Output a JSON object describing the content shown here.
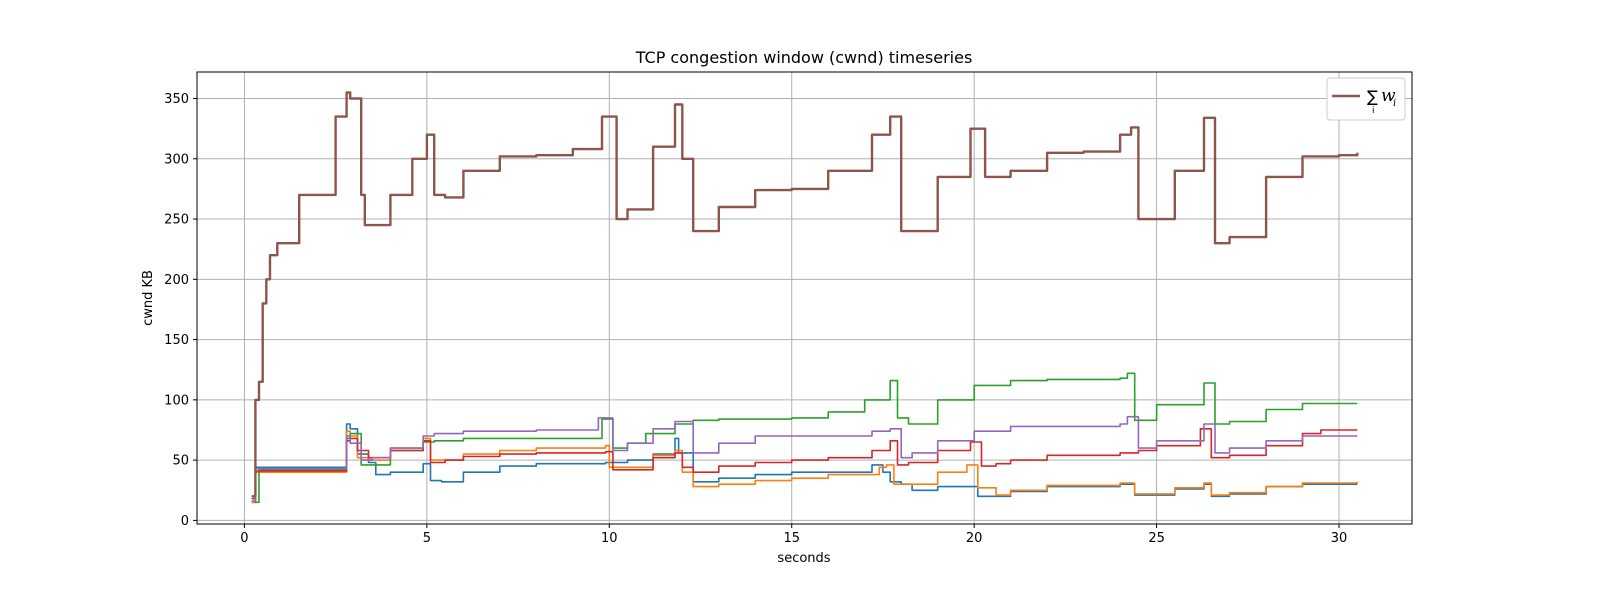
{
  "chart_data": {
    "type": "line",
    "title": "TCP congestion window (cwnd) timeseries",
    "xlabel": "seconds",
    "ylabel": "cwnd KB",
    "xlim": [
      -1.3,
      32
    ],
    "ylim": [
      -3,
      372
    ],
    "xticks": [
      0,
      5,
      10,
      15,
      20,
      25,
      30
    ],
    "yticks": [
      0,
      50,
      100,
      150,
      200,
      250,
      300,
      350
    ],
    "grid": true,
    "legend": {
      "placement": "top-right",
      "entries": [
        "sum"
      ]
    },
    "legend_text": {
      "main": "∑",
      "sub": "i",
      "var": "w",
      "var_sub": "i"
    },
    "series": [
      {
        "color": "#1f77b4",
        "points": [
          [
            0.2,
            15
          ],
          [
            0.3,
            44
          ],
          [
            2.8,
            80
          ],
          [
            2.9,
            76
          ],
          [
            3.1,
            55
          ],
          [
            3.4,
            48
          ],
          [
            3.6,
            38
          ],
          [
            4,
            40
          ],
          [
            4.9,
            47
          ],
          [
            5.1,
            33
          ],
          [
            5.4,
            32
          ],
          [
            6,
            40
          ],
          [
            7,
            45
          ],
          [
            8,
            47
          ],
          [
            9.9,
            48
          ],
          [
            10.5,
            50
          ],
          [
            11.2,
            55
          ],
          [
            11.8,
            68
          ],
          [
            11.9,
            56
          ],
          [
            12.3,
            32
          ],
          [
            13,
            35
          ],
          [
            14,
            38
          ],
          [
            15,
            40
          ],
          [
            17.2,
            46
          ],
          [
            17.5,
            40
          ],
          [
            17.7,
            32
          ],
          [
            18,
            30
          ],
          [
            18.3,
            25
          ],
          [
            19,
            28
          ],
          [
            20,
            28
          ],
          [
            20.1,
            20
          ],
          [
            20.6,
            20
          ],
          [
            21,
            24
          ],
          [
            22,
            28
          ],
          [
            24,
            30
          ],
          [
            24.4,
            21
          ],
          [
            24.8,
            21
          ],
          [
            25.5,
            26
          ],
          [
            26.3,
            30
          ],
          [
            26.5,
            20
          ],
          [
            27,
            22
          ],
          [
            28,
            28
          ],
          [
            29,
            30
          ],
          [
            30.5,
            30
          ]
        ]
      },
      {
        "color": "#ff7f0e",
        "points": [
          [
            0.2,
            15
          ],
          [
            0.3,
            40
          ],
          [
            2.8,
            74
          ],
          [
            2.9,
            70
          ],
          [
            3.1,
            52
          ],
          [
            3.4,
            50
          ],
          [
            4,
            60
          ],
          [
            4.9,
            68
          ],
          [
            5.1,
            50
          ],
          [
            6,
            55
          ],
          [
            7,
            58
          ],
          [
            8,
            60
          ],
          [
            9.9,
            62
          ],
          [
            10,
            44
          ],
          [
            10.5,
            44
          ],
          [
            11.2,
            54
          ],
          [
            11.8,
            58
          ],
          [
            12,
            40
          ],
          [
            12.3,
            28
          ],
          [
            13,
            30
          ],
          [
            14,
            33
          ],
          [
            15,
            35
          ],
          [
            16,
            38
          ],
          [
            17.4,
            44
          ],
          [
            17.6,
            46
          ],
          [
            17.8,
            30
          ],
          [
            18.2,
            30
          ],
          [
            19,
            40
          ],
          [
            19.8,
            46
          ],
          [
            20.1,
            27
          ],
          [
            20.6,
            21
          ],
          [
            21,
            25
          ],
          [
            22,
            29
          ],
          [
            24,
            31
          ],
          [
            24.4,
            22
          ],
          [
            24.8,
            22
          ],
          [
            25.5,
            27
          ],
          [
            26.3,
            31
          ],
          [
            26.5,
            21
          ],
          [
            27,
            23
          ],
          [
            28,
            28
          ],
          [
            29,
            31
          ],
          [
            30.5,
            32
          ]
        ]
      },
      {
        "color": "#2ca02c",
        "points": [
          [
            0.2,
            20
          ],
          [
            0.3,
            15
          ],
          [
            0.4,
            42
          ],
          [
            2.8,
            68
          ],
          [
            2.9,
            72
          ],
          [
            3.2,
            46
          ],
          [
            3.4,
            46
          ],
          [
            4,
            58
          ],
          [
            4.9,
            65
          ],
          [
            5.2,
            66
          ],
          [
            6,
            68
          ],
          [
            7,
            68
          ],
          [
            8,
            68
          ],
          [
            9.8,
            84
          ],
          [
            10.1,
            60
          ],
          [
            10.5,
            64
          ],
          [
            11,
            72
          ],
          [
            11.8,
            80
          ],
          [
            12.3,
            83
          ],
          [
            13,
            84
          ],
          [
            14,
            84
          ],
          [
            15,
            85
          ],
          [
            16,
            90
          ],
          [
            17,
            100
          ],
          [
            17.7,
            116
          ],
          [
            17.9,
            85
          ],
          [
            18.2,
            80
          ],
          [
            19,
            100
          ],
          [
            20,
            112
          ],
          [
            21,
            116
          ],
          [
            22,
            117
          ],
          [
            24,
            118
          ],
          [
            24.2,
            122
          ],
          [
            24.4,
            83
          ],
          [
            25,
            96
          ],
          [
            26.3,
            114
          ],
          [
            26.6,
            80
          ],
          [
            27,
            82
          ],
          [
            28,
            92
          ],
          [
            29,
            97
          ],
          [
            30.5,
            97
          ]
        ]
      },
      {
        "color": "#d62728",
        "points": [
          [
            0.2,
            18
          ],
          [
            0.3,
            41
          ],
          [
            2.8,
            66
          ],
          [
            2.9,
            68
          ],
          [
            3.1,
            58
          ],
          [
            3.4,
            52
          ],
          [
            4,
            58
          ],
          [
            4.9,
            66
          ],
          [
            5.1,
            48
          ],
          [
            5.5,
            50
          ],
          [
            6,
            53
          ],
          [
            7,
            55
          ],
          [
            8,
            56
          ],
          [
            9.9,
            57
          ],
          [
            10.1,
            42
          ],
          [
            10.4,
            42
          ],
          [
            11.2,
            52
          ],
          [
            11.8,
            56
          ],
          [
            12,
            44
          ],
          [
            12.3,
            40
          ],
          [
            13,
            45
          ],
          [
            14,
            48
          ],
          [
            15,
            50
          ],
          [
            16,
            52
          ],
          [
            17.2,
            58
          ],
          [
            17.7,
            66
          ],
          [
            17.9,
            46
          ],
          [
            18.2,
            48
          ],
          [
            19,
            58
          ],
          [
            19.9,
            65
          ],
          [
            20.2,
            45
          ],
          [
            20.6,
            47
          ],
          [
            21,
            50
          ],
          [
            22,
            54
          ],
          [
            24,
            56
          ],
          [
            24.5,
            58
          ],
          [
            25,
            62
          ],
          [
            26.2,
            76
          ],
          [
            26.5,
            52
          ],
          [
            27,
            54
          ],
          [
            28,
            62
          ],
          [
            29,
            72
          ],
          [
            29.5,
            75
          ],
          [
            30.5,
            75
          ]
        ]
      },
      {
        "color": "#9467bd",
        "points": [
          [
            0.2,
            16
          ],
          [
            0.3,
            43
          ],
          [
            2.8,
            70
          ],
          [
            2.9,
            64
          ],
          [
            3.2,
            50
          ],
          [
            3.5,
            52
          ],
          [
            4,
            60
          ],
          [
            4.9,
            70
          ],
          [
            5.2,
            72
          ],
          [
            6,
            74
          ],
          [
            7,
            74
          ],
          [
            8,
            75
          ],
          [
            9.7,
            85
          ],
          [
            10.1,
            58
          ],
          [
            10.5,
            64
          ],
          [
            11.2,
            76
          ],
          [
            11.8,
            82
          ],
          [
            12.3,
            56
          ],
          [
            13,
            64
          ],
          [
            14,
            70
          ],
          [
            15,
            70
          ],
          [
            16,
            70
          ],
          [
            17.2,
            74
          ],
          [
            17.7,
            76
          ],
          [
            18,
            52
          ],
          [
            18.3,
            56
          ],
          [
            19,
            66
          ],
          [
            20,
            74
          ],
          [
            21,
            78
          ],
          [
            22,
            78
          ],
          [
            24,
            80
          ],
          [
            24.2,
            86
          ],
          [
            24.5,
            60
          ],
          [
            25,
            66
          ],
          [
            26.3,
            80
          ],
          [
            26.6,
            56
          ],
          [
            27,
            60
          ],
          [
            28,
            66
          ],
          [
            29,
            70
          ],
          [
            30.5,
            70
          ]
        ]
      },
      {
        "color": "#8c564b",
        "sum": true,
        "points": [
          [
            0.2,
            20
          ],
          [
            0.3,
            100
          ],
          [
            0.4,
            115
          ],
          [
            0.5,
            180
          ],
          [
            0.6,
            200
          ],
          [
            0.7,
            220
          ],
          [
            0.9,
            230
          ],
          [
            1.5,
            270
          ],
          [
            2.5,
            335
          ],
          [
            2.8,
            355
          ],
          [
            2.9,
            350
          ],
          [
            3.2,
            270
          ],
          [
            3.3,
            245
          ],
          [
            3.6,
            245
          ],
          [
            4,
            270
          ],
          [
            4.6,
            300
          ],
          [
            5,
            320
          ],
          [
            5.2,
            270
          ],
          [
            5.5,
            268
          ],
          [
            6,
            290
          ],
          [
            7,
            302
          ],
          [
            8,
            303
          ],
          [
            9,
            308
          ],
          [
            9.8,
            335
          ],
          [
            10.2,
            250
          ],
          [
            10.5,
            258
          ],
          [
            11.2,
            310
          ],
          [
            11.8,
            345
          ],
          [
            12,
            300
          ],
          [
            12.3,
            240
          ],
          [
            13,
            260
          ],
          [
            14,
            274
          ],
          [
            15,
            275
          ],
          [
            16,
            290
          ],
          [
            17.2,
            320
          ],
          [
            17.7,
            335
          ],
          [
            18,
            240
          ],
          [
            18.2,
            240
          ],
          [
            19,
            285
          ],
          [
            19.9,
            325
          ],
          [
            20.3,
            285
          ],
          [
            20.8,
            285
          ],
          [
            21,
            290
          ],
          [
            22,
            305
          ],
          [
            23,
            306
          ],
          [
            24,
            320
          ],
          [
            24.3,
            326
          ],
          [
            24.5,
            250
          ],
          [
            24.8,
            250
          ],
          [
            25.5,
            290
          ],
          [
            26.3,
            334
          ],
          [
            26.6,
            230
          ],
          [
            27,
            235
          ],
          [
            28,
            285
          ],
          [
            29,
            302
          ],
          [
            30,
            303
          ],
          [
            30.5,
            305
          ]
        ]
      }
    ]
  }
}
